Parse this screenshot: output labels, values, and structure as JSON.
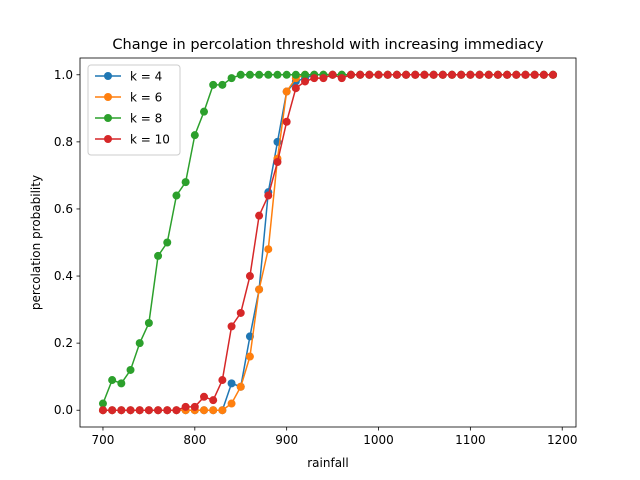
{
  "chart_data": {
    "type": "line",
    "title": "Change in percolation threshold with increasing immediacy",
    "xlabel": "rainfall",
    "ylabel": "percolation probability",
    "xlim": [
      675,
      1215
    ],
    "ylim": [
      -0.05,
      1.05
    ],
    "xticks": [
      700,
      800,
      900,
      1000,
      1100,
      1200
    ],
    "yticks": [
      0.0,
      0.2,
      0.4,
      0.6,
      0.8,
      1.0
    ],
    "yticklabels": [
      "0.0",
      "0.2",
      "0.4",
      "0.6",
      "0.8",
      "1.0"
    ],
    "grid": false,
    "legend_position": "upper-left",
    "x": [
      700,
      710,
      720,
      730,
      740,
      750,
      760,
      770,
      780,
      790,
      800,
      810,
      820,
      830,
      840,
      850,
      860,
      870,
      880,
      890,
      900,
      910,
      920,
      930,
      940,
      950,
      960,
      970,
      980,
      990,
      1000,
      1010,
      1020,
      1030,
      1040,
      1050,
      1060,
      1070,
      1080,
      1090,
      1100,
      1110,
      1120,
      1130,
      1140,
      1150,
      1160,
      1170,
      1180,
      1190
    ],
    "series": [
      {
        "name": "k = 4",
        "color": "#1f77b4",
        "values": [
          0,
          0,
          0,
          0,
          0,
          0,
          0,
          0,
          0,
          0,
          0,
          0,
          0,
          0,
          0.08,
          0.07,
          0.22,
          0.36,
          0.65,
          0.8,
          0.95,
          0.98,
          0.99,
          1,
          1,
          1,
          1,
          1,
          1,
          1,
          1,
          1,
          1,
          1,
          1,
          1,
          1,
          1,
          1,
          1,
          1,
          1,
          1,
          1,
          1,
          1,
          1,
          1,
          1,
          1
        ]
      },
      {
        "name": "k = 6",
        "color": "#ff7f0e",
        "values": [
          0,
          0,
          0,
          0,
          0,
          0,
          0,
          0,
          0,
          0,
          0,
          0,
          0,
          0,
          0.02,
          0.07,
          0.16,
          0.36,
          0.48,
          0.75,
          0.95,
          0.99,
          1,
          1,
          1,
          1,
          1,
          1,
          1,
          1,
          1,
          1,
          1,
          1,
          1,
          1,
          1,
          1,
          1,
          1,
          1,
          1,
          1,
          1,
          1,
          1,
          1,
          1,
          1,
          1
        ]
      },
      {
        "name": "k = 8",
        "color": "#2ca02c",
        "values": [
          0.02,
          0.09,
          0.08,
          0.12,
          0.2,
          0.26,
          0.46,
          0.5,
          0.64,
          0.68,
          0.82,
          0.89,
          0.97,
          0.97,
          0.99,
          1,
          1,
          1,
          1,
          1,
          1,
          1,
          1,
          1,
          1,
          1,
          1,
          1,
          1,
          1,
          1,
          1,
          1,
          1,
          1,
          1,
          1,
          1,
          1,
          1,
          1,
          1,
          1,
          1,
          1,
          1,
          1,
          1,
          1,
          1
        ]
      },
      {
        "name": "k = 10",
        "color": "#d62728",
        "values": [
          0,
          0,
          0,
          0,
          0,
          0,
          0,
          0,
          0,
          0.01,
          0.01,
          0.04,
          0.03,
          0.09,
          0.25,
          0.29,
          0.4,
          0.58,
          0.64,
          0.74,
          0.86,
          0.96,
          0.98,
          0.99,
          0.99,
          1,
          0.99,
          1,
          1,
          1,
          1,
          1,
          1,
          1,
          1,
          1,
          1,
          1,
          1,
          1,
          1,
          1,
          1,
          1,
          1,
          1,
          1,
          1,
          1,
          1
        ]
      }
    ]
  }
}
